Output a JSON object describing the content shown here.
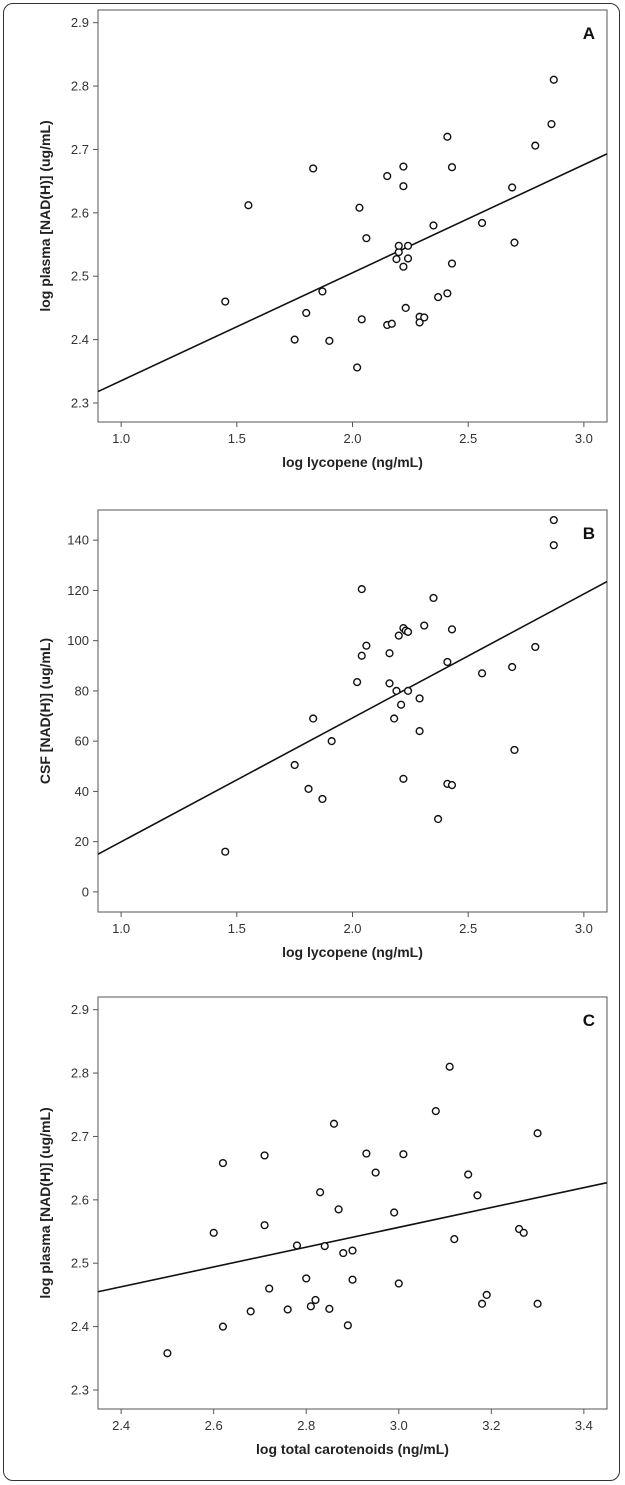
{
  "chart_data": [
    {
      "type": "scatter",
      "panel_label": "A",
      "xlabel": "log lycopene (ng/mL)",
      "ylabel": "log plasma [NAD(H)] (ug/mL)",
      "xlim": [
        0.9,
        3.1
      ],
      "ylim": [
        2.27,
        2.92
      ],
      "xticks": [
        "1.0",
        "1.5",
        "2.0",
        "2.5",
        "3.0"
      ],
      "yticks": [
        "2.3",
        "2.4",
        "2.5",
        "2.6",
        "2.7",
        "2.8",
        "2.9"
      ],
      "fit_line": {
        "x": [
          0.9,
          3.1
        ],
        "y": [
          2.318,
          2.693
        ]
      },
      "points": [
        [
          1.45,
          2.46
        ],
        [
          1.55,
          2.612
        ],
        [
          1.75,
          2.4
        ],
        [
          1.8,
          2.442
        ],
        [
          1.83,
          2.67
        ],
        [
          1.87,
          2.476
        ],
        [
          1.9,
          2.398
        ],
        [
          2.02,
          2.356
        ],
        [
          2.03,
          2.608
        ],
        [
          2.04,
          2.432
        ],
        [
          2.06,
          2.56
        ],
        [
          2.15,
          2.658
        ],
        [
          2.15,
          2.423
        ],
        [
          2.17,
          2.425
        ],
        [
          2.19,
          2.527
        ],
        [
          2.2,
          2.538
        ],
        [
          2.2,
          2.548
        ],
        [
          2.22,
          2.673
        ],
        [
          2.22,
          2.642
        ],
        [
          2.22,
          2.515
        ],
        [
          2.23,
          2.45
        ],
        [
          2.24,
          2.528
        ],
        [
          2.24,
          2.548
        ],
        [
          2.29,
          2.436
        ],
        [
          2.29,
          2.427
        ],
        [
          2.31,
          2.435
        ],
        [
          2.35,
          2.58
        ],
        [
          2.37,
          2.467
        ],
        [
          2.41,
          2.72
        ],
        [
          2.41,
          2.473
        ],
        [
          2.43,
          2.672
        ],
        [
          2.43,
          2.52
        ],
        [
          2.56,
          2.584
        ],
        [
          2.69,
          2.64
        ],
        [
          2.7,
          2.553
        ],
        [
          2.79,
          2.706
        ],
        [
          2.86,
          2.74
        ],
        [
          2.87,
          2.81
        ]
      ]
    },
    {
      "type": "scatter",
      "panel_label": "B",
      "xlabel": "log lycopene (ng/mL)",
      "ylabel": "CSF [NAD(H)] (ug/mL)",
      "xlim": [
        0.9,
        3.1
      ],
      "ylim": [
        -8,
        152
      ],
      "xticks": [
        "1.0",
        "1.5",
        "2.0",
        "2.5",
        "3.0"
      ],
      "yticks": [
        "0",
        "20",
        "40",
        "60",
        "80",
        "100",
        "120",
        "140"
      ],
      "fit_line": {
        "x": [
          0.9,
          3.1
        ],
        "y": [
          15,
          123.5
        ]
      },
      "points": [
        [
          1.45,
          16
        ],
        [
          1.75,
          50.5
        ],
        [
          1.81,
          41
        ],
        [
          1.83,
          69
        ],
        [
          1.87,
          37
        ],
        [
          1.91,
          60
        ],
        [
          2.02,
          83.5
        ],
        [
          2.04,
          94
        ],
        [
          2.04,
          120.5
        ],
        [
          2.06,
          98
        ],
        [
          2.16,
          95
        ],
        [
          2.16,
          83
        ],
        [
          2.18,
          69
        ],
        [
          2.19,
          80
        ],
        [
          2.2,
          102
        ],
        [
          2.21,
          74.5
        ],
        [
          2.22,
          105
        ],
        [
          2.22,
          45
        ],
        [
          2.23,
          104
        ],
        [
          2.24,
          103.5
        ],
        [
          2.24,
          80
        ],
        [
          2.29,
          77
        ],
        [
          2.29,
          64
        ],
        [
          2.31,
          106
        ],
        [
          2.35,
          117
        ],
        [
          2.37,
          29
        ],
        [
          2.41,
          91.5
        ],
        [
          2.41,
          43
        ],
        [
          2.43,
          104.5
        ],
        [
          2.43,
          42.5
        ],
        [
          2.56,
          87
        ],
        [
          2.69,
          89.5
        ],
        [
          2.7,
          56.5
        ],
        [
          2.79,
          97.5
        ],
        [
          2.87,
          138
        ],
        [
          2.87,
          148
        ]
      ]
    },
    {
      "type": "scatter",
      "panel_label": "C",
      "xlabel": "log total carotenoids (ng/mL)",
      "ylabel": "log plasma [NAD(H)] (ug/mL)",
      "xlim": [
        2.35,
        3.45
      ],
      "ylim": [
        2.27,
        2.92
      ],
      "xticks": [
        "2.4",
        "2.6",
        "2.8",
        "3.0",
        "3.2",
        "3.4"
      ],
      "yticks": [
        "2.3",
        "2.4",
        "2.5",
        "2.6",
        "2.7",
        "2.8",
        "2.9"
      ],
      "fit_line": {
        "x": [
          2.35,
          3.45
        ],
        "y": [
          2.455,
          2.627
        ]
      },
      "points": [
        [
          2.5,
          2.358
        ],
        [
          2.6,
          2.548
        ],
        [
          2.62,
          2.4
        ],
        [
          2.62,
          2.658
        ],
        [
          2.68,
          2.424
        ],
        [
          2.71,
          2.67
        ],
        [
          2.71,
          2.56
        ],
        [
          2.72,
          2.46
        ],
        [
          2.76,
          2.427
        ],
        [
          2.78,
          2.528
        ],
        [
          2.8,
          2.476
        ],
        [
          2.81,
          2.432
        ],
        [
          2.82,
          2.442
        ],
        [
          2.83,
          2.612
        ],
        [
          2.84,
          2.527
        ],
        [
          2.85,
          2.428
        ],
        [
          2.86,
          2.72
        ],
        [
          2.87,
          2.585
        ],
        [
          2.88,
          2.516
        ],
        [
          2.89,
          2.402
        ],
        [
          2.9,
          2.52
        ],
        [
          2.9,
          2.474
        ],
        [
          2.93,
          2.673
        ],
        [
          2.95,
          2.643
        ],
        [
          2.99,
          2.58
        ],
        [
          3.0,
          2.468
        ],
        [
          3.01,
          2.672
        ],
        [
          3.08,
          2.74
        ],
        [
          3.11,
          2.81
        ],
        [
          3.12,
          2.538
        ],
        [
          3.15,
          2.64
        ],
        [
          3.17,
          2.607
        ],
        [
          3.18,
          2.436
        ],
        [
          3.19,
          2.45
        ],
        [
          3.26,
          2.554
        ],
        [
          3.27,
          2.548
        ],
        [
          3.3,
          2.705
        ],
        [
          3.3,
          2.436
        ]
      ]
    }
  ]
}
